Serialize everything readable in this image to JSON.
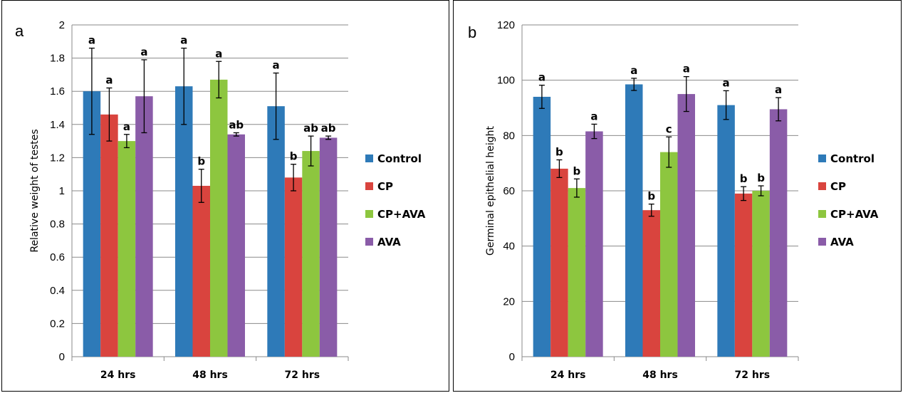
{
  "chart_data": [
    {
      "type": "bar",
      "panel_label": "a",
      "ylabel": "Relative weight of testes",
      "ylim": [
        0,
        2
      ],
      "yticks": [
        "0",
        "0.2",
        "0.4",
        "0.6",
        "0.8",
        "1",
        "1.2",
        "1.4",
        "1.6",
        "1.8",
        "2"
      ],
      "grid": true,
      "legend_position": "right",
      "categories": [
        "24 hrs",
        "48 hrs",
        "72 hrs"
      ],
      "series": [
        {
          "name": "Control",
          "color": "#2e7ab8",
          "values": [
            1.6,
            1.63,
            1.51
          ],
          "errors": [
            0.26,
            0.23,
            0.2
          ],
          "labels": [
            "a",
            "a",
            "a"
          ]
        },
        {
          "name": "CP",
          "color": "#d9443e",
          "values": [
            1.46,
            1.03,
            1.08
          ],
          "errors": [
            0.16,
            0.1,
            0.08
          ],
          "labels": [
            "a",
            "b",
            "b"
          ]
        },
        {
          "name": "CP+AVA",
          "color": "#8dc63f",
          "values": [
            1.3,
            1.67,
            1.24
          ],
          "errors": [
            0.04,
            0.11,
            0.09
          ],
          "labels": [
            "a",
            "a",
            "ab"
          ]
        },
        {
          "name": "AVA",
          "color": "#8a5ca8",
          "values": [
            1.57,
            1.34,
            1.32
          ],
          "errors": [
            0.22,
            0.01,
            0.01
          ],
          "labels": [
            "a",
            "ab",
            "ab"
          ]
        }
      ]
    },
    {
      "type": "bar",
      "panel_label": "b",
      "ylabel": "Germinal epithelial height",
      "ylim": [
        0,
        120
      ],
      "yticks": [
        "0",
        "20",
        "40",
        "60",
        "80",
        "100",
        "120"
      ],
      "grid": true,
      "legend_position": "right",
      "categories": [
        "24 hrs",
        "48 hrs",
        "72 hrs"
      ],
      "series": [
        {
          "name": "Control",
          "color": "#2e7ab8",
          "values": [
            94,
            98.5,
            91
          ],
          "errors": [
            4.2,
            2.2,
            5.2
          ],
          "labels": [
            "a",
            "a",
            "a"
          ]
        },
        {
          "name": "CP",
          "color": "#d9443e",
          "values": [
            68,
            53,
            59
          ],
          "errors": [
            3.2,
            2.2,
            2.5
          ],
          "labels": [
            "b",
            "b",
            "b"
          ]
        },
        {
          "name": "CP+AVA",
          "color": "#8dc63f",
          "values": [
            61,
            74,
            60
          ],
          "errors": [
            3.3,
            5.5,
            1.8
          ],
          "labels": [
            "b",
            "c",
            "b"
          ]
        },
        {
          "name": "AVA",
          "color": "#8a5ca8",
          "values": [
            81.5,
            95,
            89.5
          ],
          "errors": [
            2.6,
            6.3,
            4.2
          ],
          "labels": [
            "a",
            "a",
            "a"
          ]
        }
      ]
    }
  ]
}
